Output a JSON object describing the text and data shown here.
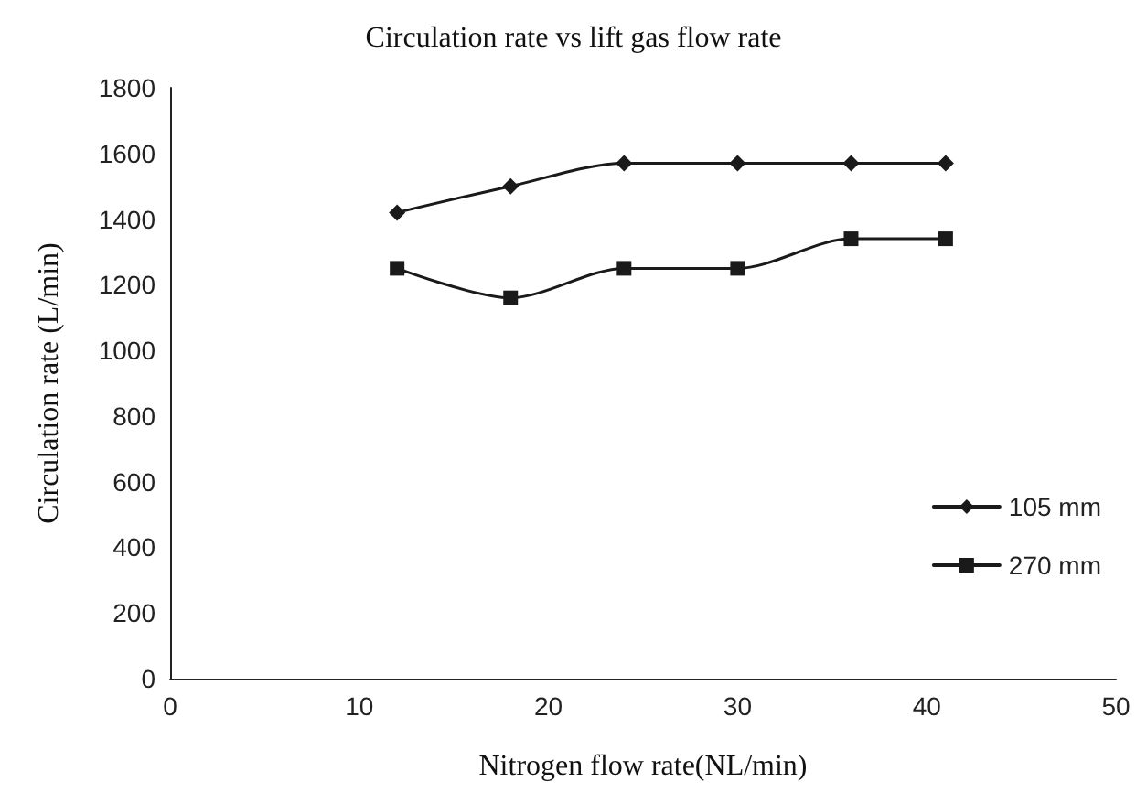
{
  "chart_data": {
    "type": "line",
    "title": "Circulation rate vs lift gas flow rate",
    "xlabel": "Nitrogen flow rate(NL/min)",
    "ylabel": "Circulation rate (L/min)",
    "x": [
      12,
      18,
      24,
      30,
      36,
      41
    ],
    "series": [
      {
        "name": "105 mm",
        "color": "#1a1a1a",
        "marker": "diamond",
        "values": [
          1420,
          1500,
          1570,
          1570,
          1570,
          1570
        ]
      },
      {
        "name": "270 mm",
        "color": "#1a1a1a",
        "marker": "square",
        "values": [
          1250,
          1160,
          1250,
          1250,
          1340,
          1340
        ]
      }
    ],
    "xlim": [
      0,
      50
    ],
    "xticks": [
      0,
      10,
      20,
      30,
      40,
      50
    ],
    "ylim": [
      0,
      1800
    ],
    "yticks": [
      0,
      200,
      400,
      600,
      800,
      1000,
      1200,
      1400,
      1600,
      1800
    ],
    "grid": false,
    "legend": "right",
    "line_style": "solid"
  }
}
